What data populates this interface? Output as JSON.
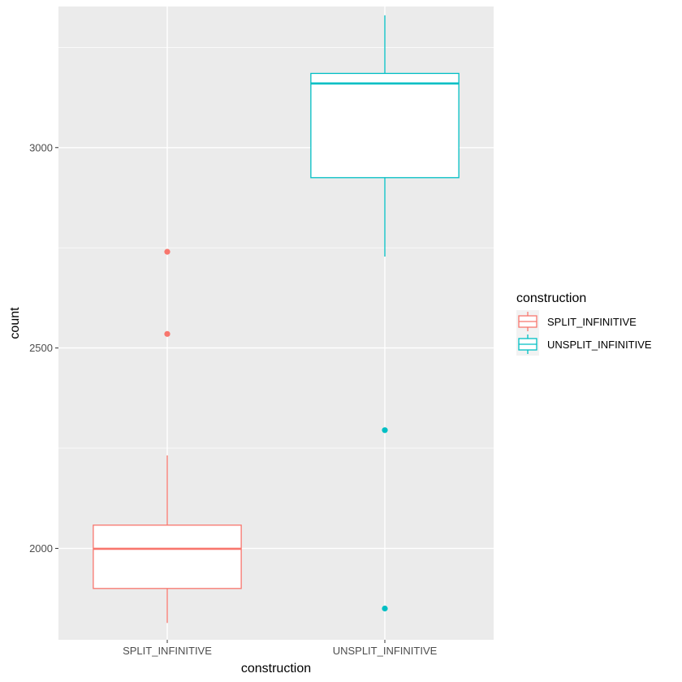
{
  "chart_data": {
    "type": "boxplot",
    "title": "",
    "xlabel": "construction",
    "ylabel": "count",
    "categories": [
      "SPLIT_INFINITIVE",
      "UNSPLIT_INFINITIVE"
    ],
    "ylim": [
      1772,
      3352
    ],
    "yticks": [
      2000,
      2500,
      3000
    ],
    "ytick_labels": [
      "2000",
      "2500",
      "3000"
    ],
    "grid": true,
    "legend": {
      "title": "construction",
      "position": "right",
      "entries": [
        "SPLIT_INFINITIVE",
        "UNSPLIT_INFINITIVE"
      ]
    },
    "series": [
      {
        "name": "SPLIT_INFINITIVE",
        "color": "#F8766D",
        "whisker_low": 1814,
        "q1": 1900,
        "median": 1999,
        "q3": 2058,
        "whisker_high": 2232,
        "outliers": [
          2740,
          2535
        ]
      },
      {
        "name": "UNSPLIT_INFINITIVE",
        "color": "#00BFC4",
        "whisker_low": 2728,
        "q1": 2925,
        "median": 3160,
        "q3": 3185,
        "whisker_high": 3330,
        "outliers": [
          2295,
          1850
        ]
      }
    ]
  }
}
